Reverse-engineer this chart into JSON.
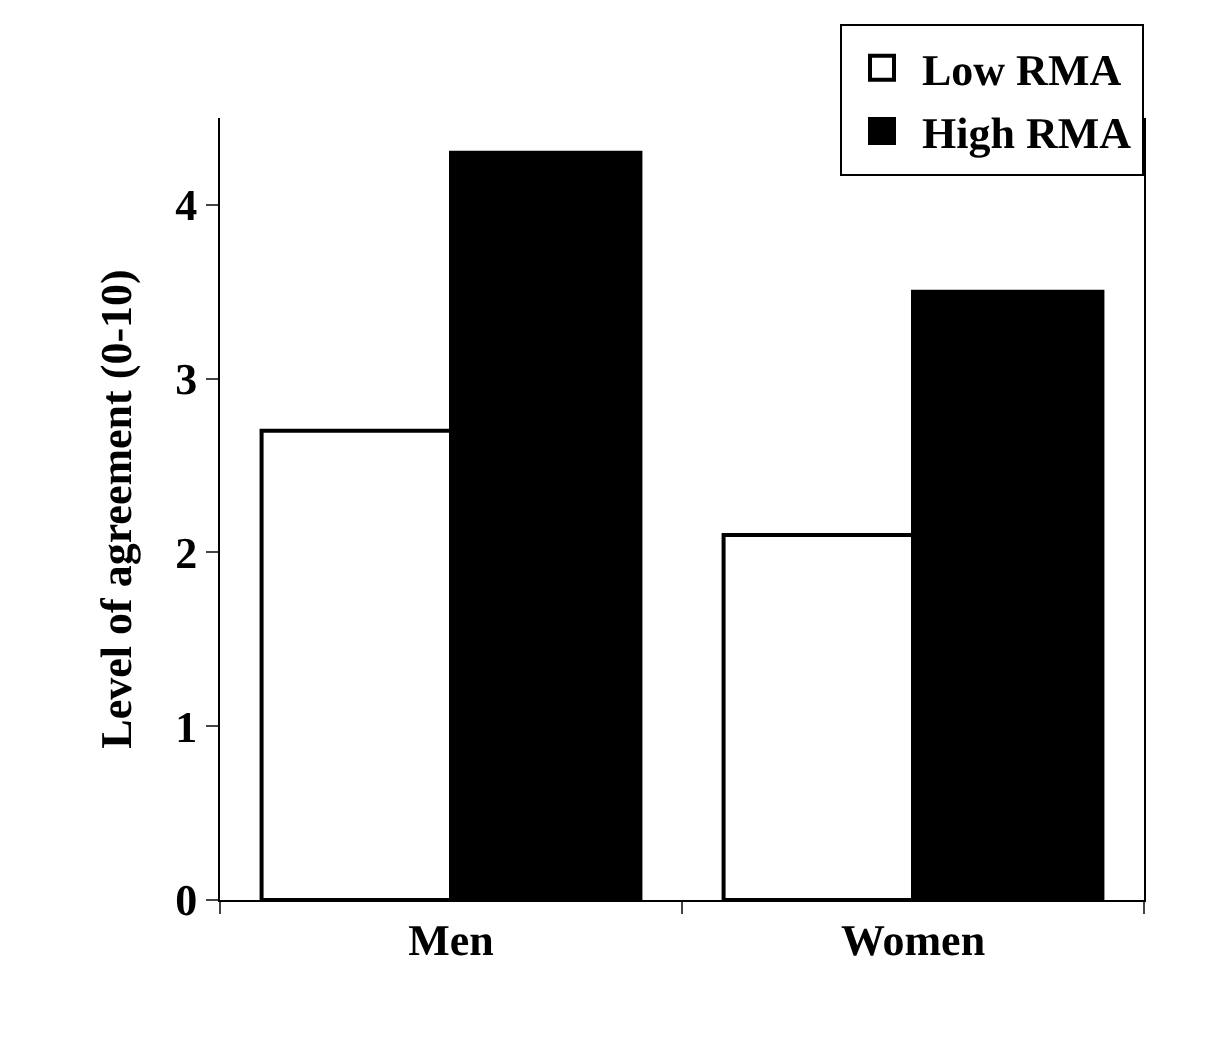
{
  "chart_data": {
    "type": "bar",
    "ylabel": "Level of agreement (0-10)",
    "categories": [
      "Men",
      "Women"
    ],
    "series": [
      {
        "name": "Low RMA",
        "color": "#ffffff",
        "values": [
          2.7,
          2.1
        ]
      },
      {
        "name": "High RMA",
        "color": "#000000",
        "values": [
          4.3,
          3.5
        ]
      }
    ],
    "ylim": [
      0,
      4.5
    ],
    "yticks": [
      0,
      1,
      2,
      3,
      4
    ],
    "legend": "top right"
  }
}
